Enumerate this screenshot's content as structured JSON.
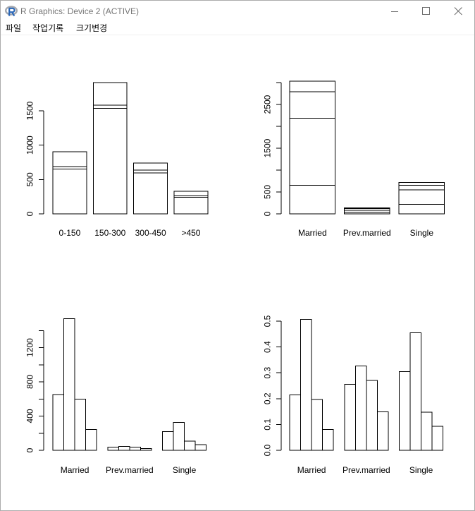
{
  "window": {
    "title": "R Graphics: Device 2 (ACTIVE)",
    "icons": {
      "app": "r-logo-icon",
      "minimize": "minimize-icon",
      "maximize": "maximize-icon",
      "close": "close-icon"
    }
  },
  "menu": {
    "items": [
      "파일",
      "작업기록",
      "크기변경"
    ]
  },
  "colors": {
    "background": "#ffffff",
    "bar_fill": "#ffffff",
    "bar_stroke": "#000000",
    "r_logo_ring": "#a4a7ad",
    "r_logo_letter": "#2a67b8",
    "window_control": "#707070"
  },
  "chart_data": [
    {
      "type": "bar",
      "stacked": true,
      "categories": [
        "0-150",
        "150-300",
        "300-450",
        ">450"
      ],
      "series": [
        {
          "values": [
            652,
            1537,
            598,
            242
          ]
        },
        {
          "values": [
            36,
            46,
            38,
            21
          ]
        },
        {
          "values": [
            218,
            327,
            106,
            67
          ]
        }
      ],
      "ylim": [
        0,
        1910
      ],
      "yaxis": {
        "ticks": [
          0,
          500,
          1000,
          1500
        ],
        "labels": [
          {
            "value": 0,
            "text": "0"
          },
          {
            "value": 500,
            "text": "500"
          },
          {
            "value": 1000,
            "text": "1000"
          },
          {
            "value": 1500,
            "text": "1500"
          }
        ]
      },
      "grid": false
    },
    {
      "type": "bar",
      "stacked": true,
      "categories": [
        "Married",
        "Prev.married",
        "Single"
      ],
      "series": [
        {
          "values": [
            652,
            36,
            218
          ]
        },
        {
          "values": [
            1537,
            46,
            327
          ]
        },
        {
          "values": [
            598,
            38,
            106
          ]
        },
        {
          "values": [
            242,
            21,
            67
          ]
        }
      ],
      "ylim": [
        0,
        3029
      ],
      "yaxis": {
        "ticks": [
          0,
          500,
          1000,
          1500,
          2000,
          2500,
          3000
        ],
        "labels": [
          {
            "value": 0,
            "text": "0"
          },
          {
            "value": 500,
            "text": "500"
          },
          {
            "value": 1500,
            "text": "1500"
          },
          {
            "value": 2500,
            "text": "2500"
          }
        ]
      },
      "grid": false
    },
    {
      "type": "bar",
      "stacked": false,
      "categories": [
        "Married",
        "Prev.married",
        "Single"
      ],
      "series": [
        {
          "values": [
            652,
            36,
            218
          ]
        },
        {
          "values": [
            1537,
            46,
            327
          ]
        },
        {
          "values": [
            598,
            38,
            106
          ]
        },
        {
          "values": [
            242,
            21,
            67
          ]
        }
      ],
      "ylim": [
        0,
        1537
      ],
      "yaxis": {
        "ticks": [
          0,
          200,
          400,
          600,
          800,
          1000,
          1200,
          1400
        ],
        "labels": [
          {
            "value": 0,
            "text": "0"
          },
          {
            "value": 400,
            "text": "400"
          },
          {
            "value": 800,
            "text": "800"
          },
          {
            "value": 1200,
            "text": "1200"
          }
        ]
      },
      "grid": false
    },
    {
      "type": "bar",
      "stacked": false,
      "categories": [
        "Married",
        "Prev.married",
        "Single"
      ],
      "series": [
        {
          "values": [
            0.215,
            0.255,
            0.304
          ]
        },
        {
          "values": [
            0.507,
            0.326,
            0.455
          ]
        },
        {
          "values": [
            0.197,
            0.27,
            0.148
          ]
        },
        {
          "values": [
            0.08,
            0.149,
            0.093
          ]
        }
      ],
      "ylim": [
        0,
        0.507
      ],
      "yaxis": {
        "ticks": [
          0,
          0.1,
          0.2,
          0.3,
          0.4,
          0.5
        ],
        "labels": [
          {
            "value": 0,
            "text": "0.0"
          },
          {
            "value": 0.1,
            "text": "0.1"
          },
          {
            "value": 0.2,
            "text": "0.2"
          },
          {
            "value": 0.3,
            "text": "0.3"
          },
          {
            "value": 0.4,
            "text": "0.4"
          },
          {
            "value": 0.5,
            "text": "0.5"
          }
        ]
      },
      "grid": false
    }
  ]
}
